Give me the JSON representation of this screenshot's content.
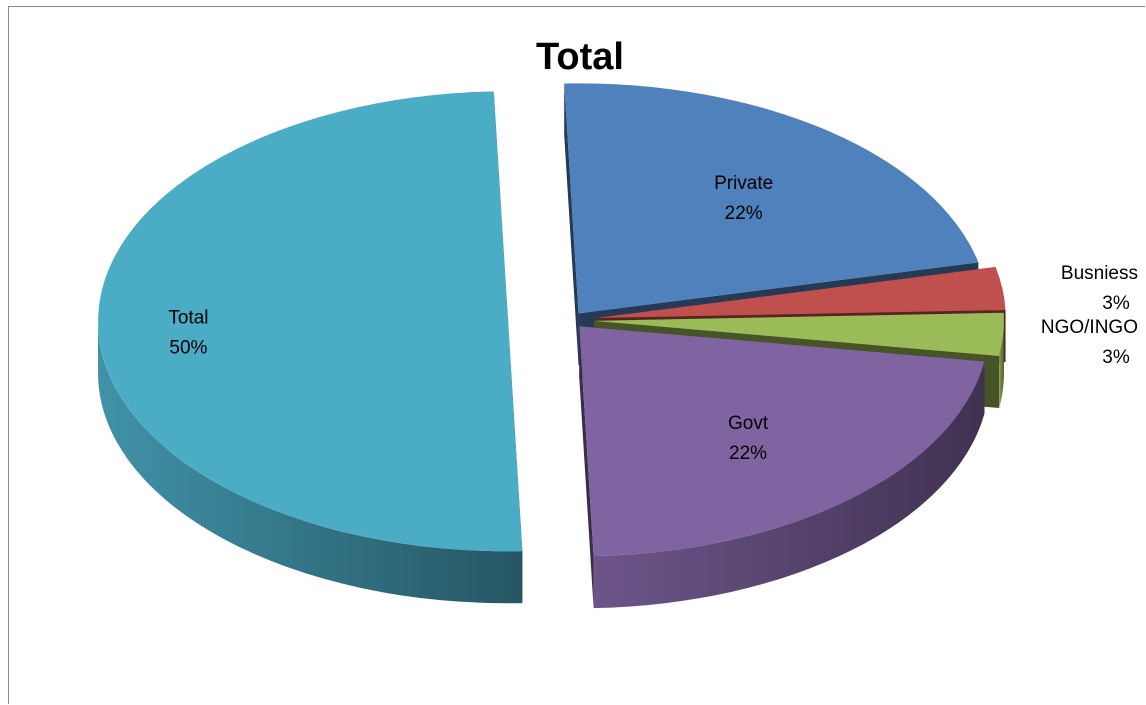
{
  "chart_data": {
    "type": "pie",
    "title": "Total",
    "slices": [
      {
        "name": "Private",
        "value": 22,
        "pct_label": "22%",
        "color": "#4F81BD"
      },
      {
        "name": "Busniess",
        "value": 3,
        "pct_label": "3%",
        "color": "#C0504D"
      },
      {
        "name": "NGO/INGO",
        "value": 3,
        "pct_label": "3%",
        "color": "#9BBB59"
      },
      {
        "name": "Govt",
        "value": 22,
        "pct_label": "22%",
        "color": "#8064A2"
      },
      {
        "name": "Total",
        "value": 50,
        "pct_label": "50%",
        "color": "#4BACC6"
      }
    ],
    "style": "3d-exploded",
    "legend": "none"
  }
}
